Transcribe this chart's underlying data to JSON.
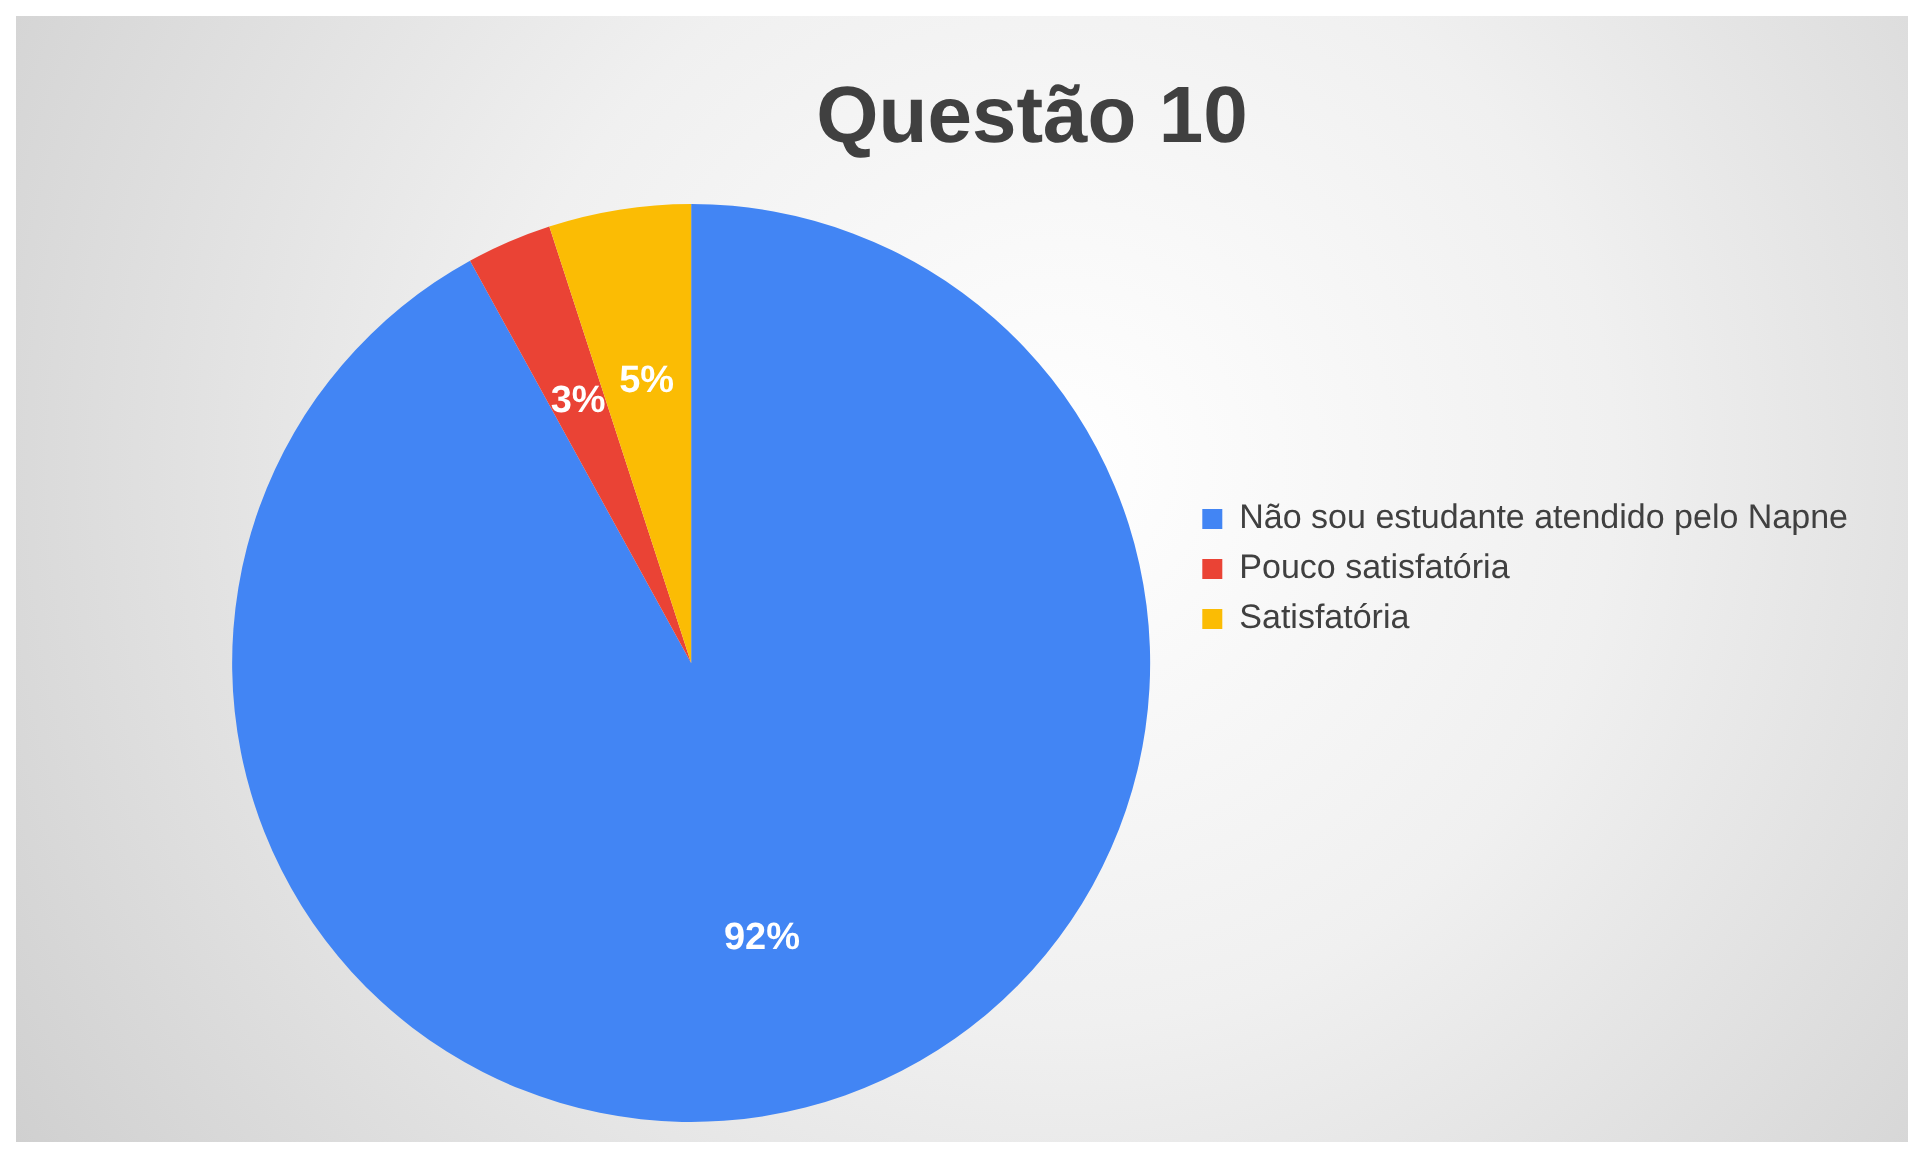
{
  "chart_data": {
    "type": "pie",
    "title": "Questão 10",
    "categories": [
      "Não sou estudante atendido pelo Napne",
      "Pouco satisfatória",
      "Satisfatória"
    ],
    "values": [
      92,
      3,
      5
    ],
    "colors": [
      "#4285f4",
      "#ea4335",
      "#fbbc04"
    ],
    "value_labels": [
      "92%",
      "3%",
      "5%"
    ],
    "legend": "right"
  }
}
